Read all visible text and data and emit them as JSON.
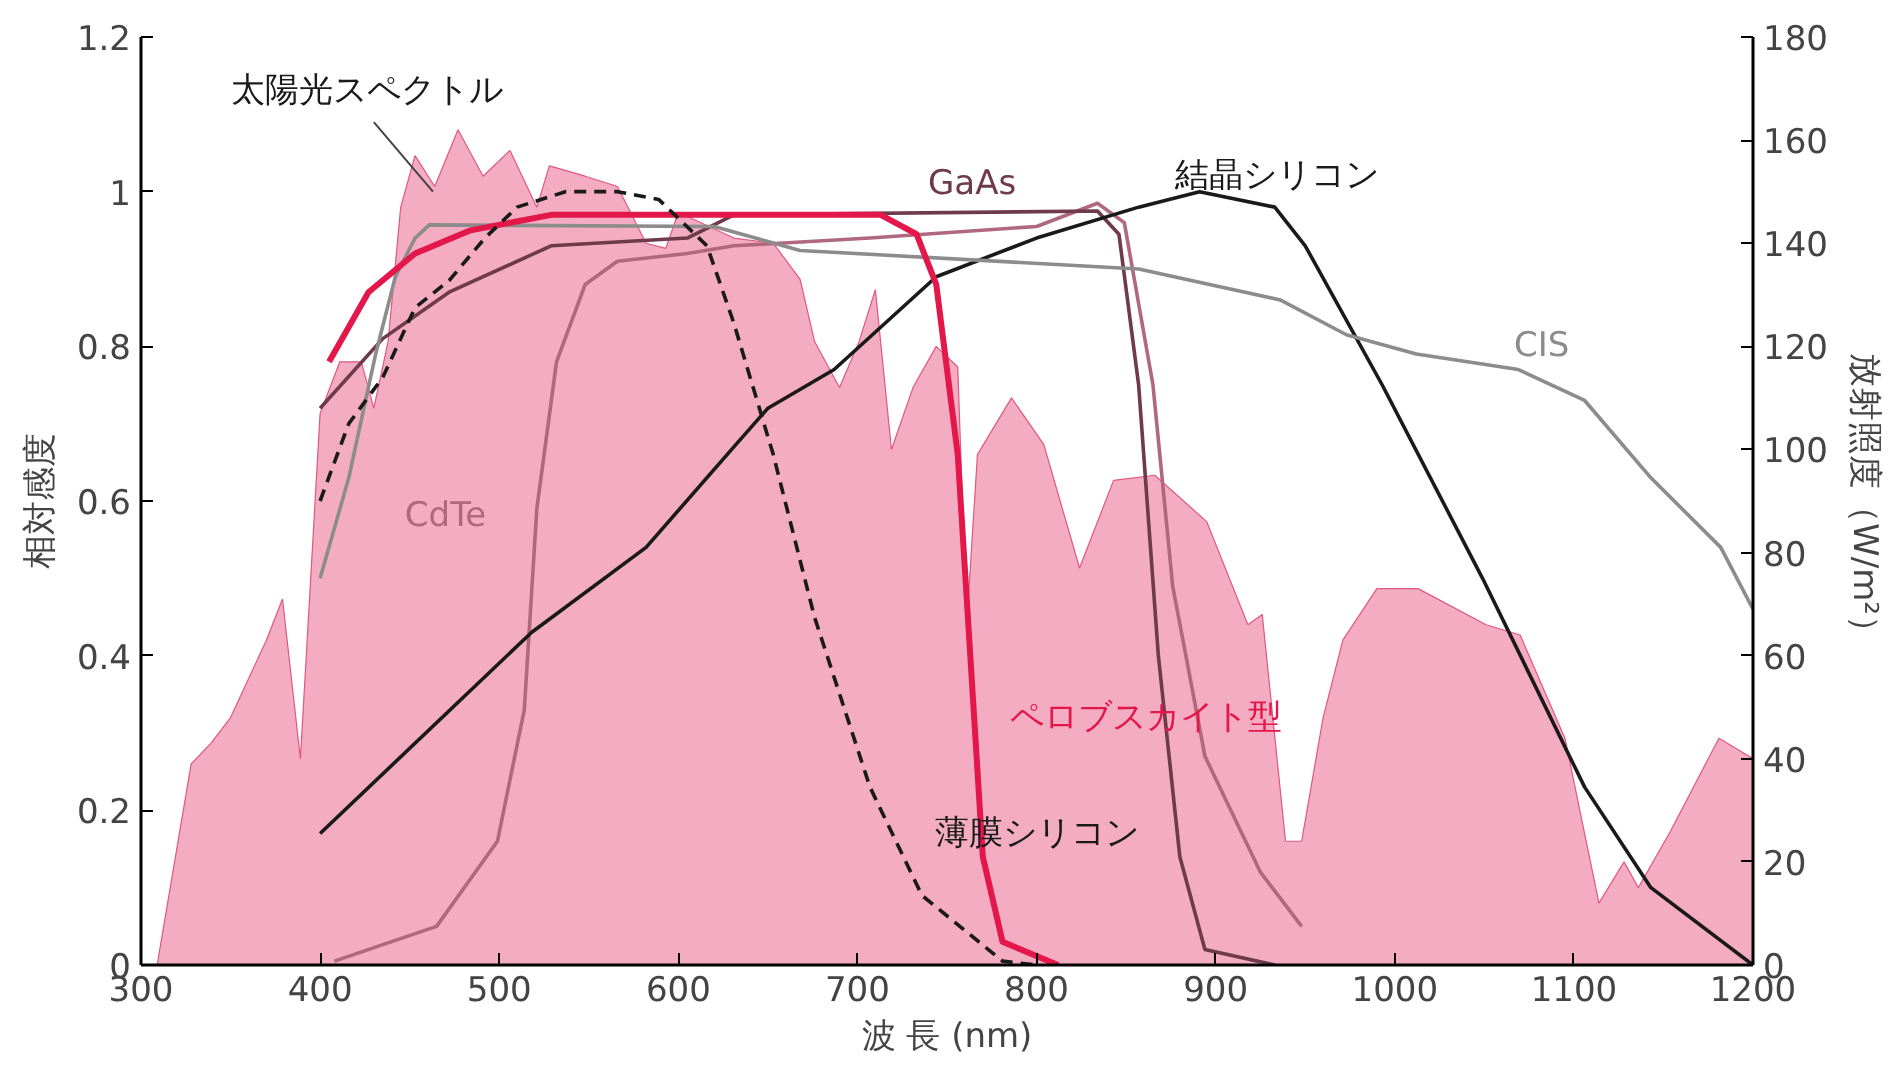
{
  "chart_data": {
    "type": "line",
    "xlabel": "波 長 (nm)",
    "ylabel": "相対感度",
    "y2label": "放射照度（W/m²）",
    "xlim": [
      300,
      1200
    ],
    "xticks": [
      300,
      400,
      500,
      600,
      700,
      800,
      900,
      1000,
      1100,
      1200
    ],
    "ylim": [
      0,
      1.2
    ],
    "yticks": [
      0,
      0.2,
      0.4,
      0.6,
      0.8,
      1,
      1.2
    ],
    "y2lim": [
      0,
      180
    ],
    "y2ticks": [
      0,
      20,
      40,
      60,
      80,
      100,
      120,
      140,
      160,
      180
    ],
    "grid": false,
    "series": [
      {
        "name": "太陽光スペクトル",
        "type": "area",
        "axis": "y2",
        "color": "#f2a3ba",
        "x": [
          300,
          309,
          328,
          339,
          350,
          370,
          379,
          389,
          400,
          411,
          423,
          430,
          438,
          445,
          453,
          464,
          477,
          491,
          506,
          521,
          528,
          548,
          566,
          582,
          593,
          600,
          631,
          653,
          668,
          676,
          690,
          701,
          710,
          719,
          731,
          744,
          756,
          761,
          767,
          786,
          804,
          824,
          843,
          866,
          895,
          918,
          926,
          939,
          948,
          960,
          971,
          990,
          1013,
          1051,
          1070,
          1095,
          1114,
          1128,
          1136,
          1154,
          1181,
          1200
        ],
        "values": [
          0,
          0,
          39,
          43,
          48,
          63,
          71,
          40,
          107,
          117,
          117,
          108,
          121,
          147,
          157,
          151,
          162,
          153,
          158,
          147,
          155,
          153,
          151,
          140,
          139,
          146,
          141,
          140,
          133,
          121,
          112,
          121,
          131,
          100,
          112,
          120,
          116,
          66,
          99,
          110,
          101,
          77,
          94,
          95,
          86,
          66,
          68,
          24,
          24,
          48,
          63,
          73,
          73,
          66,
          64,
          44,
          12,
          20,
          15,
          26,
          44,
          40
        ]
      },
      {
        "name": "CdTe",
        "color": "#b0687e",
        "x": [
          408,
          465,
          499,
          514,
          521,
          532,
          548,
          566,
          605,
          631,
          707,
          800,
          834,
          849,
          865,
          876,
          894,
          925,
          948
        ],
        "values": [
          0.005,
          0.05,
          0.16,
          0.33,
          0.59,
          0.78,
          0.88,
          0.91,
          0.92,
          0.93,
          0.94,
          0.955,
          0.985,
          0.96,
          0.75,
          0.49,
          0.27,
          0.12,
          0.05
        ]
      },
      {
        "name": "GaAs",
        "color": "#6e3a4c",
        "x": [
          400,
          435,
          472,
          529,
          605,
          631,
          834,
          846,
          857,
          868,
          880,
          894,
          933
        ],
        "values": [
          0.72,
          0.81,
          0.87,
          0.93,
          0.94,
          0.97,
          0.975,
          0.945,
          0.75,
          0.4,
          0.14,
          0.02,
          0
        ]
      },
      {
        "name": "結晶シリコン",
        "color": "#1a1a1a",
        "x": [
          400,
          518,
          582,
          631,
          650,
          687,
          744,
          800,
          857,
          891,
          933,
          950,
          993,
          1049,
          1106,
          1143,
          1200
        ],
        "values": [
          0.17,
          0.43,
          0.54,
          0.67,
          0.72,
          0.77,
          0.89,
          0.94,
          0.98,
          1.0,
          0.98,
          0.93,
          0.75,
          0.5,
          0.23,
          0.1,
          0
        ]
      },
      {
        "name": "CIS",
        "color": "#8c8c8c",
        "x": [
          400,
          416,
          431,
          442,
          453,
          461,
          620,
          668,
          857,
          936,
          973,
          1012,
          1069,
          1106,
          1143,
          1182,
          1200
        ],
        "values": [
          0.5,
          0.63,
          0.79,
          0.89,
          0.94,
          0.957,
          0.955,
          0.924,
          0.9,
          0.86,
          0.815,
          0.79,
          0.77,
          0.73,
          0.63,
          0.54,
          0.46
        ]
      },
      {
        "name": "ペロブスカイト型",
        "color": "#e3174a",
        "x": [
          405,
          427,
          453,
          484,
          529,
          713,
          733,
          744,
          756,
          763,
          770,
          781,
          812
        ],
        "values": [
          0.78,
          0.87,
          0.92,
          0.95,
          0.97,
          0.97,
          0.945,
          0.88,
          0.66,
          0.4,
          0.14,
          0.03,
          0
        ]
      },
      {
        "name": "薄膜シリコン",
        "line_style": "dashed",
        "color": "#1a1a1a",
        "x": [
          400,
          416,
          435,
          453,
          472,
          492,
          510,
          537,
          566,
          589,
          616,
          631,
          653,
          676,
          707,
          736,
          781,
          800
        ],
        "values": [
          0.6,
          0.7,
          0.76,
          0.85,
          0.885,
          0.94,
          0.98,
          1.0,
          1.0,
          0.99,
          0.93,
          0.83,
          0.66,
          0.45,
          0.23,
          0.09,
          0.005,
          0
        ]
      }
    ]
  }
}
